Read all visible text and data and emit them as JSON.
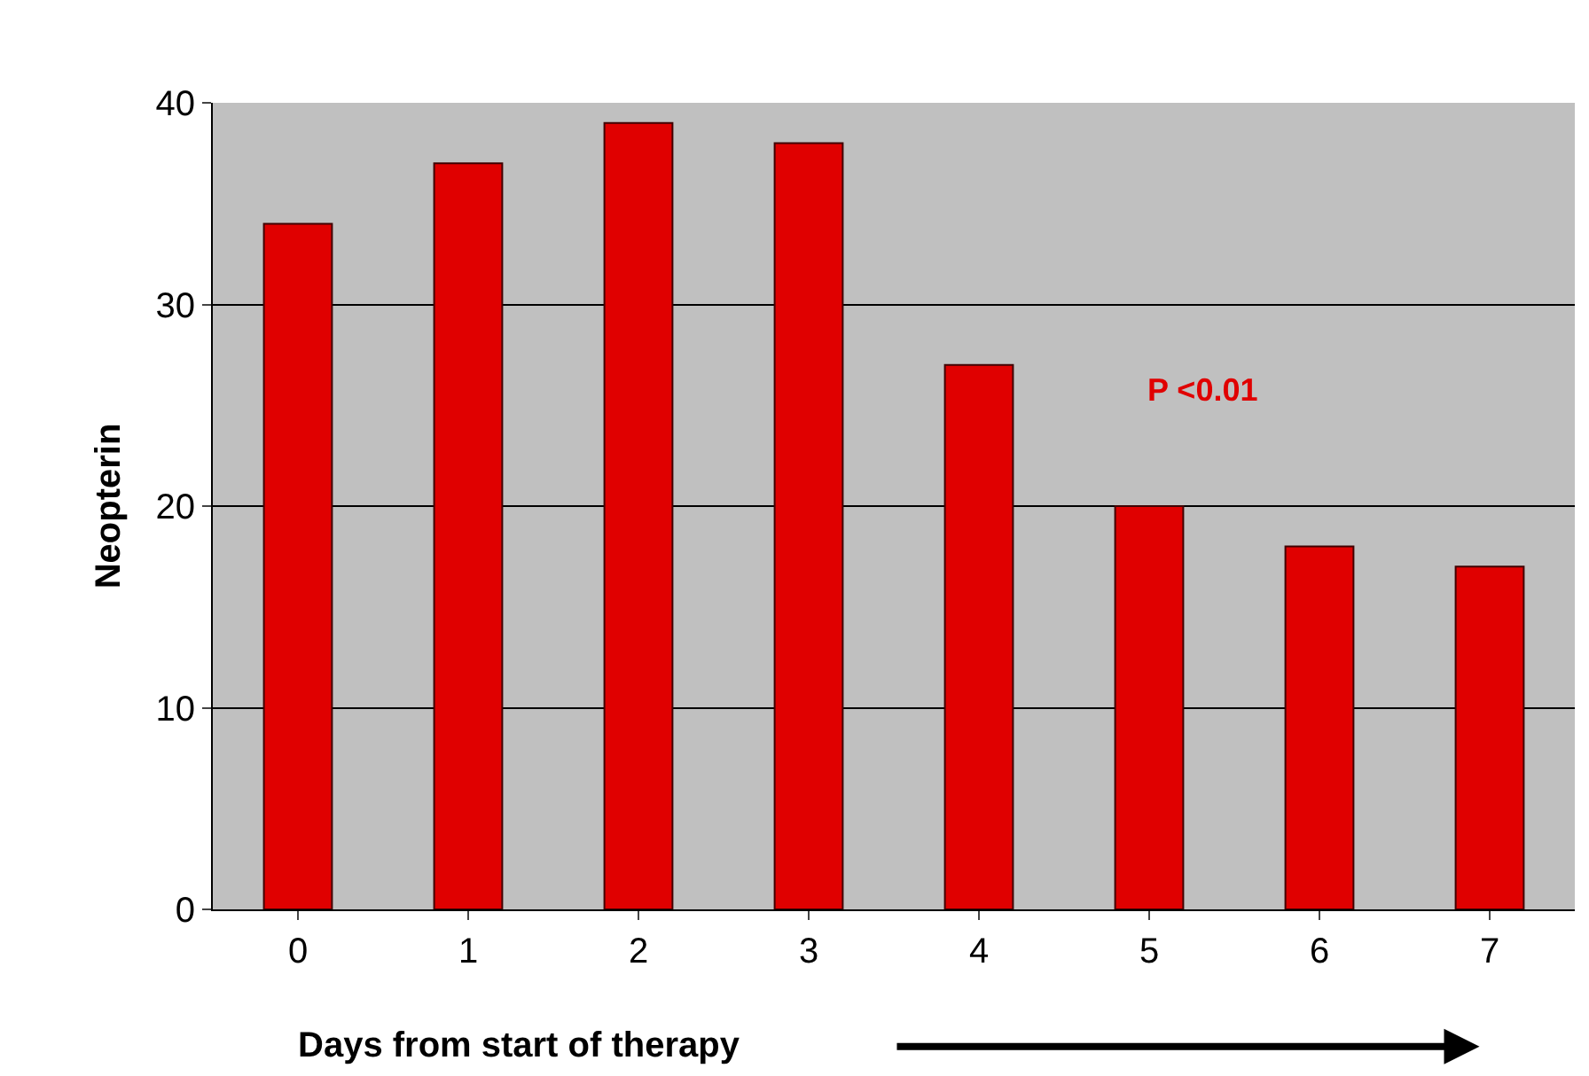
{
  "chart_data": {
    "type": "bar",
    "categories": [
      "0",
      "1",
      "2",
      "3",
      "4",
      "5",
      "6",
      "7"
    ],
    "values": [
      34,
      37,
      39,
      38,
      27,
      20,
      18,
      17
    ],
    "color": "#e00000",
    "xlabel": "Days from start of therapy",
    "ylabel": "Neopterin",
    "ylim": [
      0,
      40
    ],
    "yticks": [
      0,
      10,
      20,
      30,
      40
    ],
    "grid": "y",
    "annotations": [
      "P <0.01"
    ]
  }
}
